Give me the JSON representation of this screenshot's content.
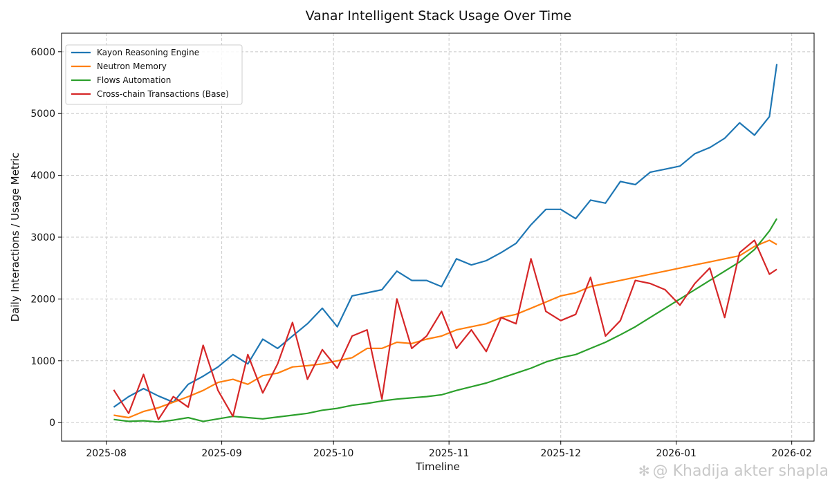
{
  "chart_data": {
    "type": "line",
    "title": "Vanar Intelligent Stack Usage Over Time",
    "xlabel": "Timeline",
    "ylabel": "Daily Interactions / Usage Metric",
    "xlim": [
      "2025-07-20",
      "2026-02-07"
    ],
    "ylim": [
      -300,
      6300
    ],
    "grid": true,
    "legend_position": "top-left",
    "x_ticks": [
      {
        "date": "2025-08-01",
        "label": "2025-08"
      },
      {
        "date": "2025-09-01",
        "label": "2025-09"
      },
      {
        "date": "2025-10-01",
        "label": "2025-10"
      },
      {
        "date": "2025-11-01",
        "label": "2025-11"
      },
      {
        "date": "2025-12-01",
        "label": "2025-12"
      },
      {
        "date": "2026-01-01",
        "label": "2026-01"
      },
      {
        "date": "2026-02-01",
        "label": "2026-02"
      }
    ],
    "y_ticks": [
      0,
      1000,
      2000,
      3000,
      4000,
      5000,
      6000
    ],
    "series": [
      {
        "name": "Kayon Reasoning Engine",
        "color": "#1f77b4",
        "x": [
          "2025-08-03",
          "2025-08-07",
          "2025-08-11",
          "2025-08-15",
          "2025-08-19",
          "2025-08-23",
          "2025-08-27",
          "2025-08-31",
          "2025-09-04",
          "2025-09-08",
          "2025-09-12",
          "2025-09-16",
          "2025-09-20",
          "2025-09-24",
          "2025-09-28",
          "2025-10-02",
          "2025-10-06",
          "2025-10-10",
          "2025-10-14",
          "2025-10-18",
          "2025-10-22",
          "2025-10-26",
          "2025-10-30",
          "2025-11-03",
          "2025-11-07",
          "2025-11-11",
          "2025-11-15",
          "2025-11-19",
          "2025-11-23",
          "2025-11-27",
          "2025-12-01",
          "2025-12-05",
          "2025-12-09",
          "2025-12-13",
          "2025-12-17",
          "2025-12-21",
          "2025-12-25",
          "2025-12-29",
          "2026-01-02",
          "2026-01-06",
          "2026-01-10",
          "2026-01-14",
          "2026-01-18",
          "2026-01-22",
          "2026-01-26",
          "2026-01-28"
        ],
        "values": [
          250,
          420,
          550,
          430,
          330,
          620,
          750,
          900,
          1100,
          950,
          1350,
          1200,
          1400,
          1600,
          1850,
          1550,
          2050,
          2100,
          2150,
          2450,
          2300,
          2300,
          2200,
          2650,
          2550,
          2620,
          2750,
          2900,
          3200,
          3450,
          3450,
          3300,
          3600,
          3550,
          3900,
          3850,
          4050,
          4100,
          4150,
          4350,
          4450,
          4600,
          4850,
          4650,
          4950,
          5800
        ]
      },
      {
        "name": "Neutron Memory",
        "color": "#ff7f0e",
        "x": [
          "2025-08-03",
          "2025-08-07",
          "2025-08-11",
          "2025-08-15",
          "2025-08-19",
          "2025-08-23",
          "2025-08-27",
          "2025-08-31",
          "2025-09-04",
          "2025-09-08",
          "2025-09-12",
          "2025-09-16",
          "2025-09-20",
          "2025-09-24",
          "2025-09-28",
          "2025-10-02",
          "2025-10-06",
          "2025-10-10",
          "2025-10-14",
          "2025-10-18",
          "2025-10-22",
          "2025-10-26",
          "2025-10-30",
          "2025-11-03",
          "2025-11-07",
          "2025-11-11",
          "2025-11-15",
          "2025-11-19",
          "2025-11-23",
          "2025-11-27",
          "2025-12-01",
          "2025-12-05",
          "2025-12-09",
          "2025-12-13",
          "2025-12-17",
          "2025-12-21",
          "2025-12-25",
          "2025-12-29",
          "2026-01-02",
          "2026-01-06",
          "2026-01-10",
          "2026-01-14",
          "2026-01-18",
          "2026-01-22",
          "2026-01-26",
          "2026-01-28"
        ],
        "values": [
          120,
          80,
          180,
          240,
          330,
          420,
          520,
          650,
          700,
          620,
          760,
          800,
          900,
          920,
          950,
          1000,
          1050,
          1200,
          1200,
          1300,
          1280,
          1350,
          1400,
          1500,
          1550,
          1600,
          1700,
          1750,
          1850,
          1950,
          2050,
          2100,
          2200,
          2250,
          2300,
          2350,
          2400,
          2450,
          2500,
          2550,
          2600,
          2650,
          2700,
          2850,
          2950,
          2880
        ]
      },
      {
        "name": "Flows Automation",
        "color": "#2ca02c",
        "x": [
          "2025-08-03",
          "2025-08-07",
          "2025-08-11",
          "2025-08-15",
          "2025-08-19",
          "2025-08-23",
          "2025-08-27",
          "2025-08-31",
          "2025-09-04",
          "2025-09-08",
          "2025-09-12",
          "2025-09-16",
          "2025-09-20",
          "2025-09-24",
          "2025-09-28",
          "2025-10-02",
          "2025-10-06",
          "2025-10-10",
          "2025-10-14",
          "2025-10-18",
          "2025-10-22",
          "2025-10-26",
          "2025-10-30",
          "2025-11-03",
          "2025-11-07",
          "2025-11-11",
          "2025-11-15",
          "2025-11-19",
          "2025-11-23",
          "2025-11-27",
          "2025-12-01",
          "2025-12-05",
          "2025-12-09",
          "2025-12-13",
          "2025-12-17",
          "2025-12-21",
          "2025-12-25",
          "2025-12-29",
          "2026-01-02",
          "2026-01-06",
          "2026-01-10",
          "2026-01-14",
          "2026-01-18",
          "2026-01-22",
          "2026-01-26",
          "2026-01-28"
        ],
        "values": [
          50,
          20,
          30,
          10,
          40,
          80,
          20,
          60,
          100,
          80,
          60,
          90,
          120,
          150,
          200,
          230,
          280,
          310,
          350,
          380,
          400,
          420,
          450,
          520,
          580,
          640,
          720,
          800,
          880,
          980,
          1050,
          1100,
          1200,
          1300,
          1420,
          1550,
          1700,
          1850,
          2000,
          2150,
          2300,
          2450,
          2600,
          2800,
          3100,
          3300
        ]
      },
      {
        "name": "Cross-chain Transactions (Base)",
        "color": "#d62728",
        "x": [
          "2025-08-03",
          "2025-08-07",
          "2025-08-11",
          "2025-08-15",
          "2025-08-19",
          "2025-08-23",
          "2025-08-27",
          "2025-08-31",
          "2025-09-04",
          "2025-09-08",
          "2025-09-12",
          "2025-09-16",
          "2025-09-20",
          "2025-09-24",
          "2025-09-28",
          "2025-10-02",
          "2025-10-06",
          "2025-10-10",
          "2025-10-14",
          "2025-10-18",
          "2025-10-22",
          "2025-10-26",
          "2025-10-30",
          "2025-11-03",
          "2025-11-07",
          "2025-11-11",
          "2025-11-15",
          "2025-11-19",
          "2025-11-23",
          "2025-11-27",
          "2025-12-01",
          "2025-12-05",
          "2025-12-09",
          "2025-12-13",
          "2025-12-17",
          "2025-12-21",
          "2025-12-25",
          "2025-12-29",
          "2026-01-02",
          "2026-01-06",
          "2026-01-10",
          "2026-01-14",
          "2026-01-18",
          "2026-01-22",
          "2026-01-26",
          "2026-01-28"
        ],
        "values": [
          530,
          150,
          780,
          50,
          420,
          250,
          1250,
          520,
          100,
          1100,
          480,
          950,
          1620,
          700,
          1180,
          880,
          1400,
          1500,
          380,
          2000,
          1200,
          1400,
          1800,
          1200,
          1500,
          1150,
          1700,
          1600,
          2650,
          1800,
          1650,
          1750,
          2350,
          1400,
          1650,
          2300,
          2250,
          2150,
          1900,
          2250,
          2500,
          1700,
          2750,
          2950,
          2400,
          2480
        ]
      }
    ]
  },
  "watermark": {
    "text": "@ Khadija akter shapla",
    "icon": "sparkle-icon"
  }
}
